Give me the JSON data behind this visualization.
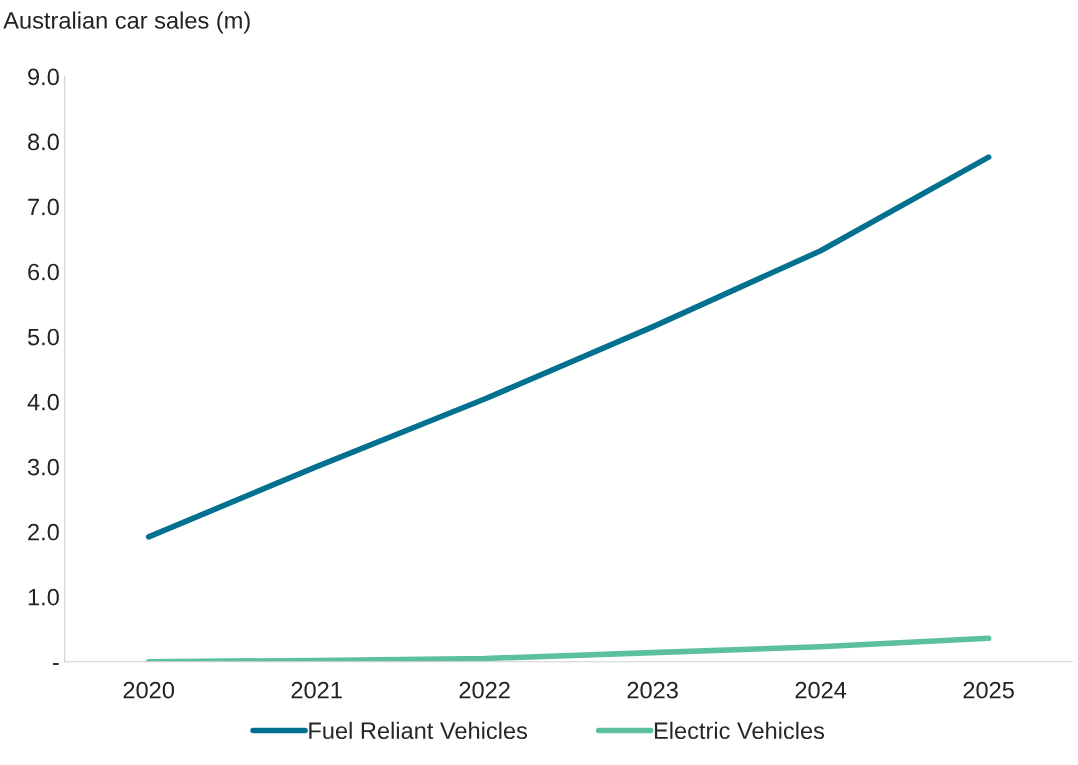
{
  "chart_data": {
    "type": "line",
    "title": "Australian car sales (m)",
    "categories": [
      "2020",
      "2021",
      "2022",
      "2023",
      "2024",
      "2025"
    ],
    "series": [
      {
        "name": "Fuel Reliant Vehicles",
        "color": "#02708f",
        "values": [
          1.92,
          3.0,
          4.04,
          5.15,
          6.32,
          7.76
        ]
      },
      {
        "name": "Electric Vehicles",
        "color": "#5cbfa0",
        "values": [
          0.0,
          0.02,
          0.05,
          0.14,
          0.23,
          0.36
        ]
      }
    ],
    "ylim": [
      0,
      9
    ],
    "yticks": [
      {
        "value": 0,
        "label": "-"
      },
      {
        "value": 1,
        "label": "1.0"
      },
      {
        "value": 2,
        "label": "2.0"
      },
      {
        "value": 3,
        "label": "3.0"
      },
      {
        "value": 4,
        "label": "4.0"
      },
      {
        "value": 5,
        "label": "5.0"
      },
      {
        "value": 6,
        "label": "6.0"
      },
      {
        "value": 7,
        "label": "7.0"
      },
      {
        "value": 8,
        "label": "8.0"
      },
      {
        "value": 9,
        "label": "9.0"
      }
    ],
    "grid": false,
    "legend": "bottom",
    "marker": "none",
    "line_style": "solid"
  }
}
